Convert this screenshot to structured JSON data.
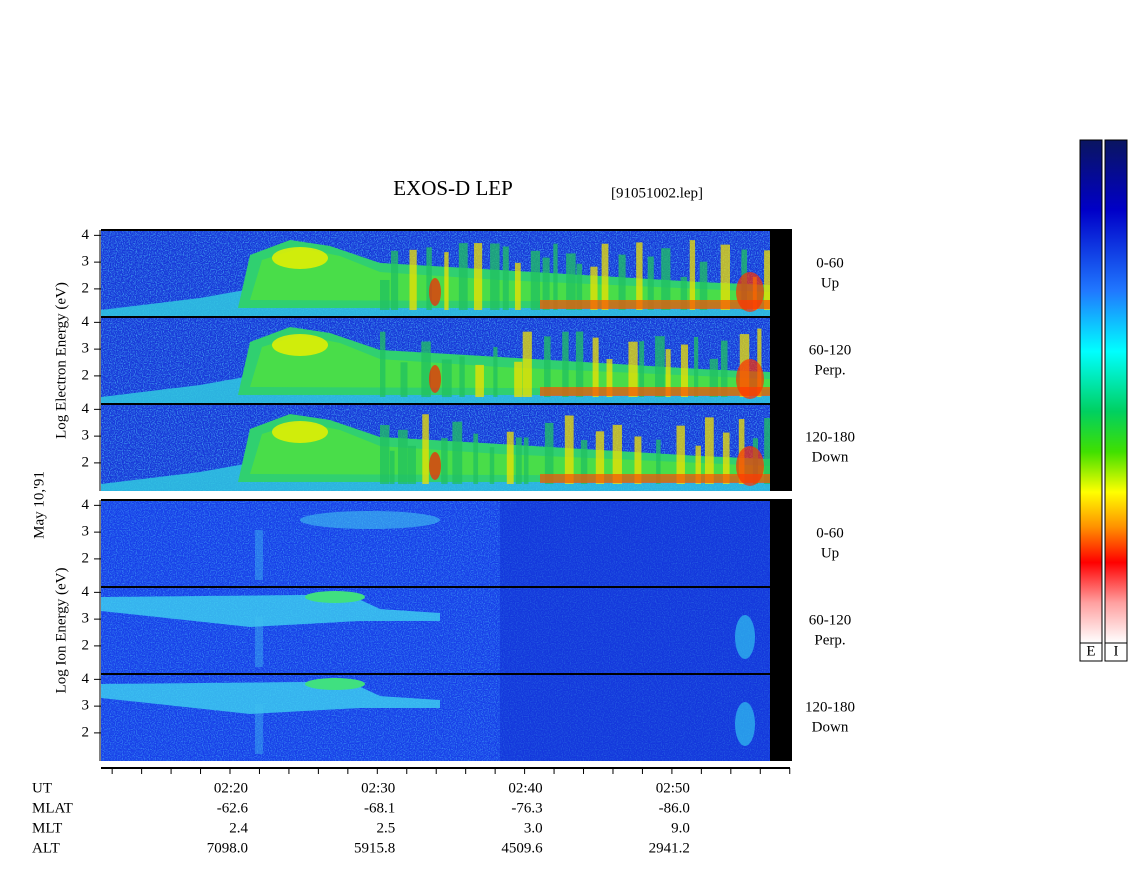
{
  "chart_data": {
    "type": "spectrogram",
    "title": "EXOS-D LEP",
    "file_label": "[91051002.lep]",
    "date_label": "May 10,'91",
    "groups": [
      {
        "axis_label": "Log Electron Energy (eV)",
        "panels": [
          {
            "angle": "0-60",
            "direction": "Up"
          },
          {
            "angle": "60-120",
            "direction": "Perp."
          },
          {
            "angle": "120-180",
            "direction": "Down"
          }
        ]
      },
      {
        "axis_label": "Log  Ion  Energy (eV)",
        "panels": [
          {
            "angle": "0-60",
            "direction": "Up"
          },
          {
            "angle": "60-120",
            "direction": "Perp."
          },
          {
            "angle": "120-180",
            "direction": "Down"
          }
        ]
      }
    ],
    "ylim": [
      0.95,
      4.2
    ],
    "yticks": [
      2,
      3,
      4
    ],
    "orbit_table": {
      "row_labels": [
        "UT",
        "MLAT",
        "MLT",
        "ALT"
      ],
      "columns": [
        [
          "02:20",
          "-62.6",
          "2.4",
          "7098.0"
        ],
        [
          "02:30",
          "-68.1",
          "2.5",
          "5915.8"
        ],
        [
          "02:40",
          "-76.3",
          "3.0",
          "4509.6"
        ],
        [
          "02:50",
          "-86.0",
          "9.0",
          "2941.2"
        ]
      ]
    },
    "colorbar_labels": [
      "E",
      "I"
    ]
  }
}
